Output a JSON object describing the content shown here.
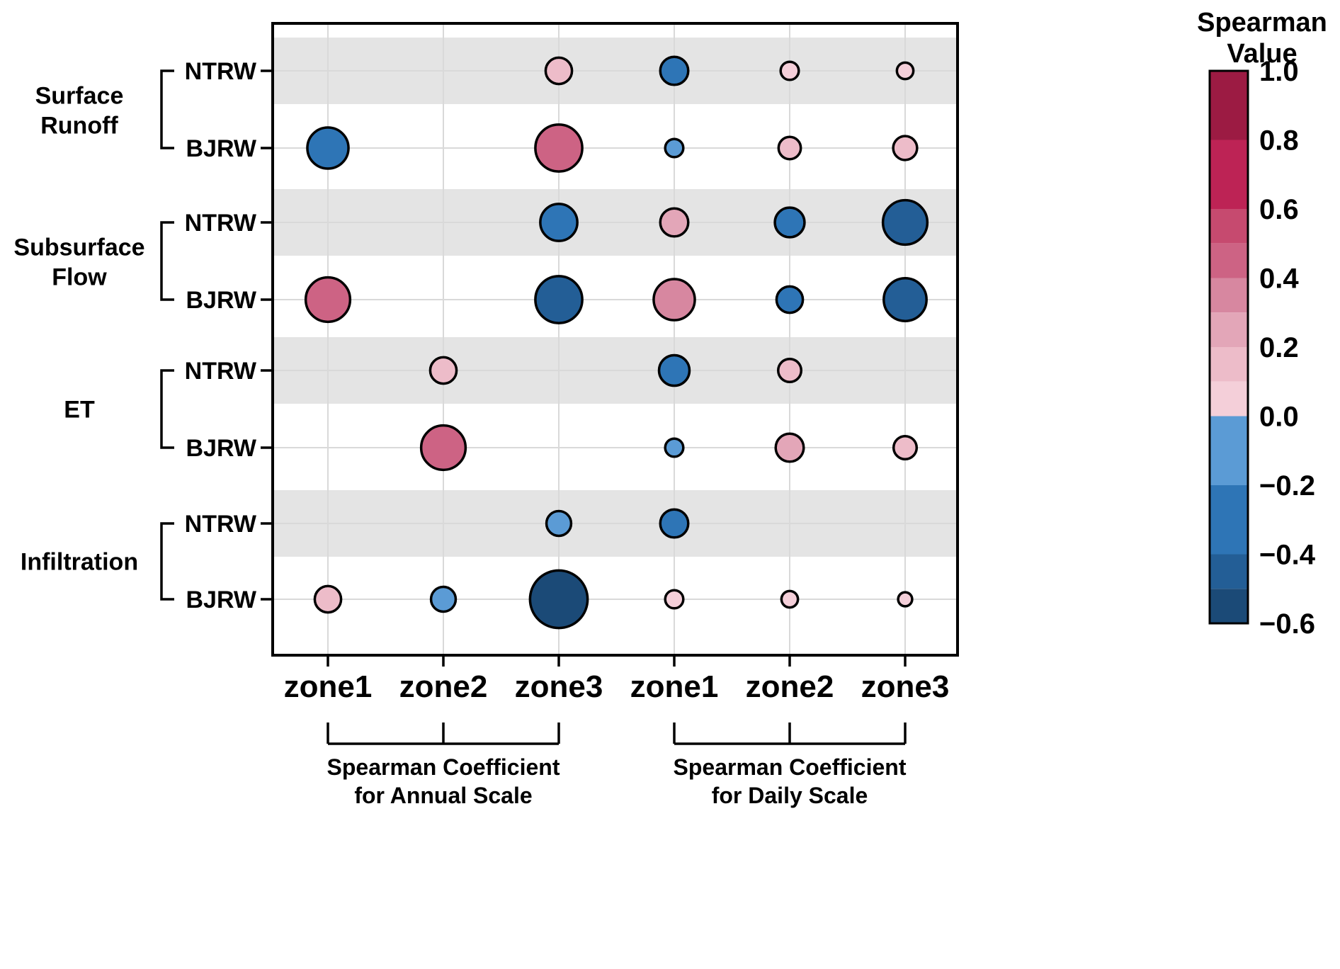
{
  "chart_data": {
    "type": "bubble",
    "title": "",
    "row_groups": [
      {
        "label": "Surface Runoff",
        "stations": [
          "NTRW",
          "BJRW"
        ]
      },
      {
        "label": "Subsurface Flow",
        "stations": [
          "NTRW",
          "BJRW"
        ]
      },
      {
        "label": "ET",
        "stations": [
          "NTRW",
          "BJRW"
        ]
      },
      {
        "label": "Infiltration",
        "stations": [
          "NTRW",
          "BJRW"
        ]
      }
    ],
    "columns": [
      "zone1",
      "zone2",
      "zone3",
      "zone1",
      "zone2",
      "zone3"
    ],
    "column_groups": [
      {
        "caption_line1": "Spearman Coefficient",
        "caption_line2": "for Annual Scale",
        "from_col": 0,
        "to_col": 2
      },
      {
        "caption_line1": "Spearman Coefficient",
        "caption_line2": "for Daily Scale",
        "from_col": 3,
        "to_col": 5
      }
    ],
    "points": [
      {
        "row": 0,
        "col": 2,
        "value": 0.2
      },
      {
        "row": 0,
        "col": 3,
        "value": -0.22
      },
      {
        "row": 0,
        "col": 4,
        "value": 0.1
      },
      {
        "row": 0,
        "col": 5,
        "value": 0.08
      },
      {
        "row": 1,
        "col": 0,
        "value": -0.38
      },
      {
        "row": 1,
        "col": 2,
        "value": 0.45
      },
      {
        "row": 1,
        "col": 3,
        "value": -0.1
      },
      {
        "row": 1,
        "col": 4,
        "value": 0.15
      },
      {
        "row": 1,
        "col": 5,
        "value": 0.17
      },
      {
        "row": 2,
        "col": 2,
        "value": -0.33
      },
      {
        "row": 2,
        "col": 3,
        "value": 0.22
      },
      {
        "row": 2,
        "col": 4,
        "value": -0.24
      },
      {
        "row": 2,
        "col": 5,
        "value": -0.42
      },
      {
        "row": 3,
        "col": 0,
        "value": 0.42
      },
      {
        "row": 3,
        "col": 2,
        "value": -0.45
      },
      {
        "row": 3,
        "col": 3,
        "value": 0.38
      },
      {
        "row": 3,
        "col": 4,
        "value": -0.2
      },
      {
        "row": 3,
        "col": 5,
        "value": -0.4
      },
      {
        "row": 4,
        "col": 1,
        "value": 0.2
      },
      {
        "row": 4,
        "col": 3,
        "value": -0.25
      },
      {
        "row": 4,
        "col": 4,
        "value": 0.16
      },
      {
        "row": 5,
        "col": 1,
        "value": 0.42
      },
      {
        "row": 5,
        "col": 3,
        "value": -0.1
      },
      {
        "row": 5,
        "col": 4,
        "value": 0.22
      },
      {
        "row": 5,
        "col": 5,
        "value": 0.16
      },
      {
        "row": 6,
        "col": 2,
        "value": -0.18
      },
      {
        "row": 6,
        "col": 3,
        "value": -0.22
      },
      {
        "row": 7,
        "col": 0,
        "value": 0.2
      },
      {
        "row": 7,
        "col": 1,
        "value": -0.18
      },
      {
        "row": 7,
        "col": 2,
        "value": -0.58
      },
      {
        "row": 7,
        "col": 3,
        "value": 0.1
      },
      {
        "row": 7,
        "col": 4,
        "value": 0.08
      },
      {
        "row": 7,
        "col": 5,
        "value": 0.05
      }
    ],
    "colorbar": {
      "title_line1": "Spearman",
      "title_line2": "Value",
      "min": -0.6,
      "max": 1.0,
      "ticks": [
        {
          "label": "1.0",
          "value": 1.0
        },
        {
          "label": "0.8",
          "value": 0.8
        },
        {
          "label": "0.6",
          "value": 0.6
        },
        {
          "label": "0.4",
          "value": 0.4
        },
        {
          "label": "0.2",
          "value": 0.2
        },
        {
          "label": "0.0",
          "value": 0.0
        },
        {
          "label": "−0.2",
          "value": -0.2
        },
        {
          "label": "−0.4",
          "value": -0.4
        },
        {
          "label": "−0.6",
          "value": -0.6
        }
      ],
      "bands": [
        {
          "from": 0.8,
          "to": 1.0,
          "color": "#9c1b43"
        },
        {
          "from": 0.6,
          "to": 0.8,
          "color": "#bd2355"
        },
        {
          "from": 0.5,
          "to": 0.6,
          "color": "#c64a6f"
        },
        {
          "from": 0.4,
          "to": 0.5,
          "color": "#cd6384"
        },
        {
          "from": 0.3,
          "to": 0.4,
          "color": "#d787a0"
        },
        {
          "from": 0.2,
          "to": 0.3,
          "color": "#e3a6b8"
        },
        {
          "from": 0.1,
          "to": 0.2,
          "color": "#edbcc9"
        },
        {
          "from": 0.0,
          "to": 0.1,
          "color": "#f4cfd9"
        },
        {
          "from": -0.2,
          "to": 0.0,
          "color": "#5b9bd5"
        },
        {
          "from": -0.4,
          "to": -0.2,
          "color": "#2e75b6"
        },
        {
          "from": -0.5,
          "to": -0.4,
          "color": "#235e96"
        },
        {
          "from": -0.6,
          "to": -0.5,
          "color": "#1b4a77"
        }
      ]
    },
    "size_scale": {
      "base_radius": 7,
      "radius_per_unit": 58
    },
    "styles": {
      "stripe_color": "#e4e4e4",
      "grid_color": "#d9d9d9",
      "bubble_stroke": "#000000",
      "frame_color": "#000000"
    }
  }
}
